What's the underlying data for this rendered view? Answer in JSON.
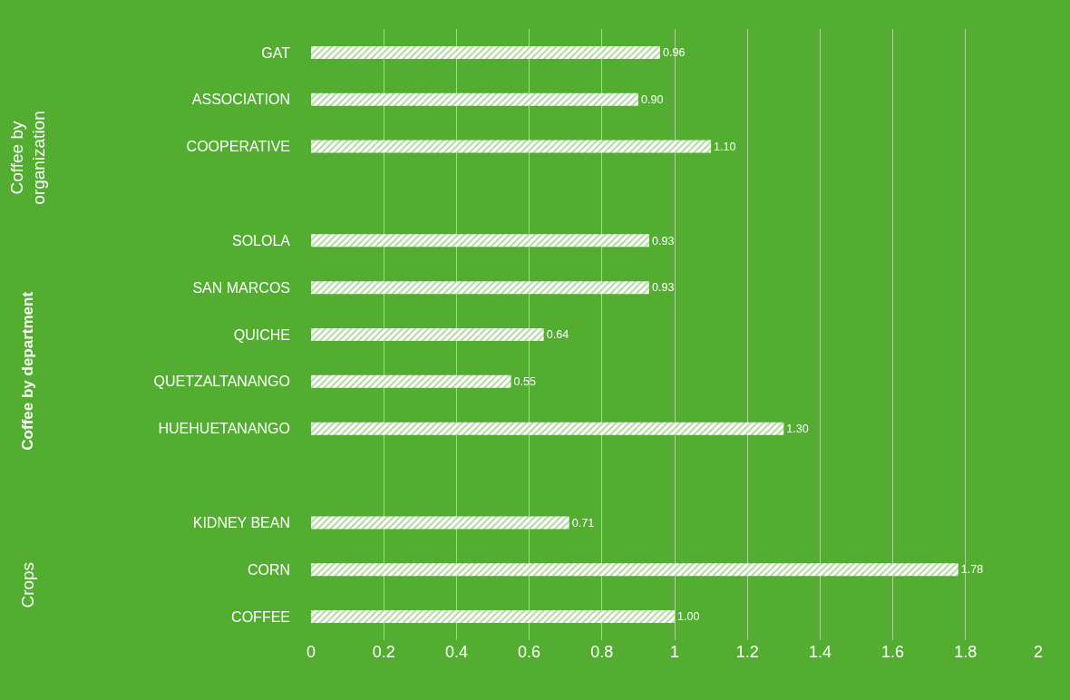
{
  "chart_data": {
    "type": "bar",
    "orientation": "horizontal",
    "categories": [
      "GAT",
      "ASSOCIATION",
      "COOPERATIVE",
      null,
      "SOLOLA",
      "SAN MARCOS",
      "QUICHE",
      "QUETZALTANANGO",
      "HUEHUETANANGO",
      null,
      "KIDNEY BEAN",
      "CORN",
      "COFFEE"
    ],
    "values": [
      0.96,
      0.9,
      1.1,
      null,
      0.93,
      0.93,
      0.64,
      0.55,
      1.3,
      null,
      0.71,
      1.78,
      1.0
    ],
    "value_labels": [
      "0.96",
      "0.90",
      "1.10",
      null,
      "0.93",
      "0.93",
      "0.64",
      "0.55",
      "1.30",
      null,
      "0.71",
      "1.78",
      "1.00"
    ],
    "color": "#ffffff",
    "xlim": [
      0,
      2
    ],
    "xticks": [
      0,
      0.2,
      0.4,
      0.6,
      0.8,
      1,
      1.2,
      1.4,
      1.6,
      1.8,
      2
    ],
    "grid": "x",
    "legend": false,
    "annotations": [
      "Coffee by\norganization",
      "Coffee by department",
      "Crops"
    ]
  }
}
